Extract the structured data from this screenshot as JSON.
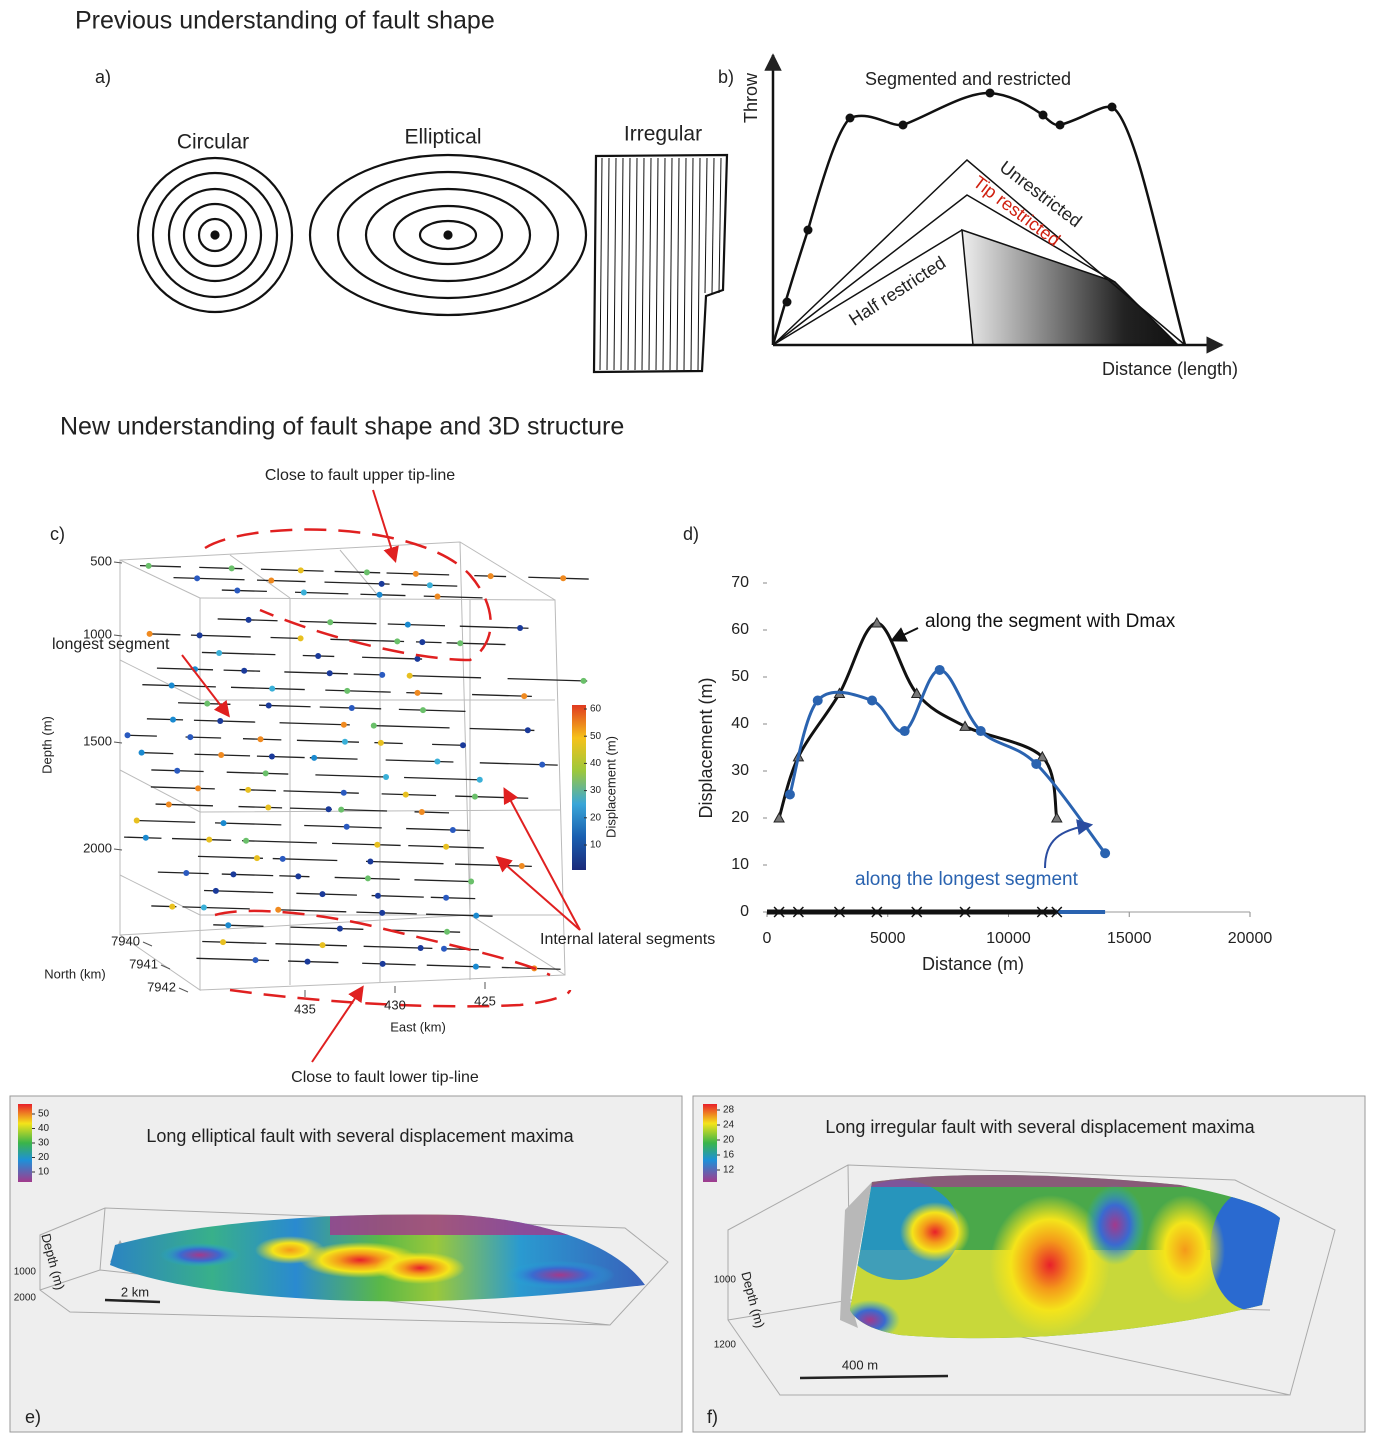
{
  "heading_previous": "Previous understanding of fault shape",
  "panel_a": {
    "label": "a)",
    "shapes": [
      "Circular",
      "Elliptical",
      "Irregular"
    ]
  },
  "panel_b": {
    "label": "b)",
    "y_axis_label": "Throw",
    "x_axis_label": "Distance (length)",
    "curves": [
      "Segmented and restricted",
      "Unrestricted",
      "Tip restricted",
      "Half restricted"
    ]
  },
  "heading_new": "New understanding of fault shape and 3D structure",
  "panel_c": {
    "label": "c)",
    "annotations": [
      "Close to fault upper tip-line",
      "longest segment",
      "Internal lateral segments",
      "Close to fault lower tip-line"
    ],
    "depth_label": "Depth (m)",
    "depth_ticks": [
      500,
      1000,
      1500,
      2000
    ],
    "north_label": "North (km)",
    "north_ticks": [
      7940,
      7941,
      7942
    ],
    "east_label": "East (km)",
    "east_ticks": [
      435,
      430,
      425
    ],
    "colorbar_label": "Displacement (m)",
    "colorbar_ticks": [
      10,
      20,
      30,
      40,
      50,
      60
    ]
  },
  "chart_data": {
    "type": "line",
    "label": "d)",
    "x_label": "Distance (m)",
    "y_label": "Displacement (m)",
    "xlim": [
      0,
      20000
    ],
    "xticks": [
      0,
      5000,
      10000,
      15000,
      20000
    ],
    "ylim": [
      0,
      70
    ],
    "yticks": [
      0,
      10,
      20,
      30,
      40,
      50,
      60,
      70
    ],
    "series": [
      {
        "name": "along the segment with Dmax",
        "color": "#111111",
        "marker": "triangle",
        "x": [
          500,
          1300,
          3000,
          4550,
          6200,
          8200,
          11400,
          12000
        ],
        "values": [
          20,
          33,
          46.5,
          61.5,
          46.5,
          39.5,
          33,
          20
        ]
      },
      {
        "name": "along the longest segment",
        "color": "#2a63b0",
        "marker": "circle",
        "x": [
          950,
          2100,
          4350,
          5700,
          7150,
          8850,
          11150,
          14000
        ],
        "values": [
          25,
          45,
          45,
          38.5,
          51.5,
          38.5,
          31.5,
          12.5
        ]
      }
    ]
  },
  "panel_e": {
    "label": "e)",
    "title": "Long elliptical fault with several displacement maxima",
    "colorbar_ticks": [
      10,
      20,
      30,
      40,
      50
    ],
    "depth_label": "Depth (m)",
    "depth_ticks": [
      1000,
      2000
    ],
    "scale_bar": "2 km"
  },
  "panel_f": {
    "label": "f)",
    "title": "Long irregular fault with several displacement maxima",
    "colorbar_ticks": [
      12,
      16,
      20,
      24,
      28
    ],
    "depth_label": "Depth (m)",
    "depth_ticks": [
      1000,
      1200
    ],
    "scale_bar": "400 m"
  }
}
